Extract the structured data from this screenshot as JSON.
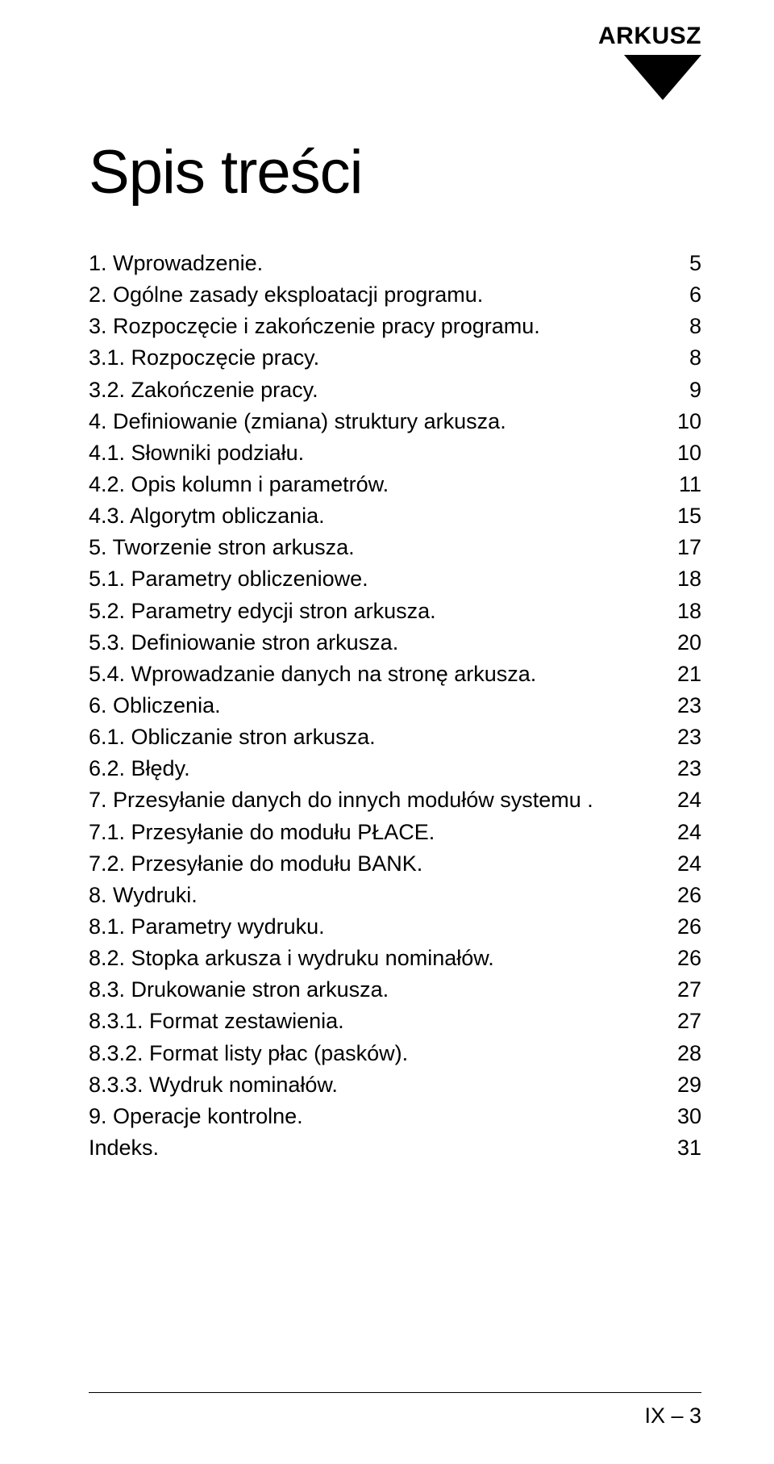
{
  "header_label": "ARKUSZ",
  "title": "Spis treści",
  "footer_page": "IX – 3",
  "toc": [
    {
      "level": 1,
      "label": "1. Wprowadzenie.",
      "page": "5"
    },
    {
      "level": 1,
      "label": "2. Ogólne zasady eksploatacji programu.",
      "page": "6"
    },
    {
      "level": 1,
      "label": "3. Rozpoczęcie i zakończenie pracy programu.",
      "page": "8"
    },
    {
      "level": 2,
      "label": "3.1. Rozpoczęcie pracy.",
      "page": "8"
    },
    {
      "level": 2,
      "label": "3.2. Zakończenie pracy.",
      "page": "9"
    },
    {
      "level": 1,
      "label": "4. Definiowanie (zmiana) struktury arkusza.",
      "page": "10"
    },
    {
      "level": 2,
      "label": "4.1. Słowniki podziału.",
      "page": "10"
    },
    {
      "level": 2,
      "label": "4.2. Opis kolumn i parametrów.",
      "page": "11"
    },
    {
      "level": 2,
      "label": "4.3. Algorytm obliczania.",
      "page": "15"
    },
    {
      "level": 1,
      "label": "5. Tworzenie stron arkusza.",
      "page": "17"
    },
    {
      "level": 2,
      "label": "5.1. Parametry obliczeniowe.",
      "page": "18"
    },
    {
      "level": 2,
      "label": "5.2. Parametry edycji stron arkusza.",
      "page": "18"
    },
    {
      "level": 2,
      "label": "5.3. Definiowanie stron arkusza.",
      "page": "20"
    },
    {
      "level": 2,
      "label": "5.4. Wprowadzanie danych na stronę arkusza.",
      "page": "21"
    },
    {
      "level": 1,
      "label": "6. Obliczenia.",
      "page": "23"
    },
    {
      "level": 2,
      "label": "6.1. Obliczanie stron arkusza.",
      "page": "23"
    },
    {
      "level": 2,
      "label": "6.2. Błędy.",
      "page": "23"
    },
    {
      "level": 1,
      "label": "7. Przesyłanie danych do innych modułów systemu .",
      "page": "24"
    },
    {
      "level": 2,
      "label": "7.1. Przesyłanie do modułu PŁACE.",
      "page": "24"
    },
    {
      "level": 2,
      "label": "7.2. Przesyłanie do modułu BANK.",
      "page": "24"
    },
    {
      "level": 1,
      "label": "8. Wydruki.",
      "page": "26"
    },
    {
      "level": 2,
      "label": "8.1. Parametry wydruku.",
      "page": "26"
    },
    {
      "level": 2,
      "label": "8.2. Stopka arkusza i wydruku nominałów.",
      "page": "26"
    },
    {
      "level": 2,
      "label": "8.3. Drukowanie stron arkusza.",
      "page": "27"
    },
    {
      "level": 3,
      "label": "8.3.1. Format zestawienia.",
      "page": "27"
    },
    {
      "level": 3,
      "label": "8.3.2. Format listy płac (pasków).",
      "page": "28"
    },
    {
      "level": 3,
      "label": "8.3.3. Wydruk nominałów.",
      "page": "29"
    },
    {
      "level": 1,
      "label": "9. Operacje kontrolne.",
      "page": "30"
    },
    {
      "level": 1,
      "label": "Indeks.",
      "page": "31"
    }
  ]
}
